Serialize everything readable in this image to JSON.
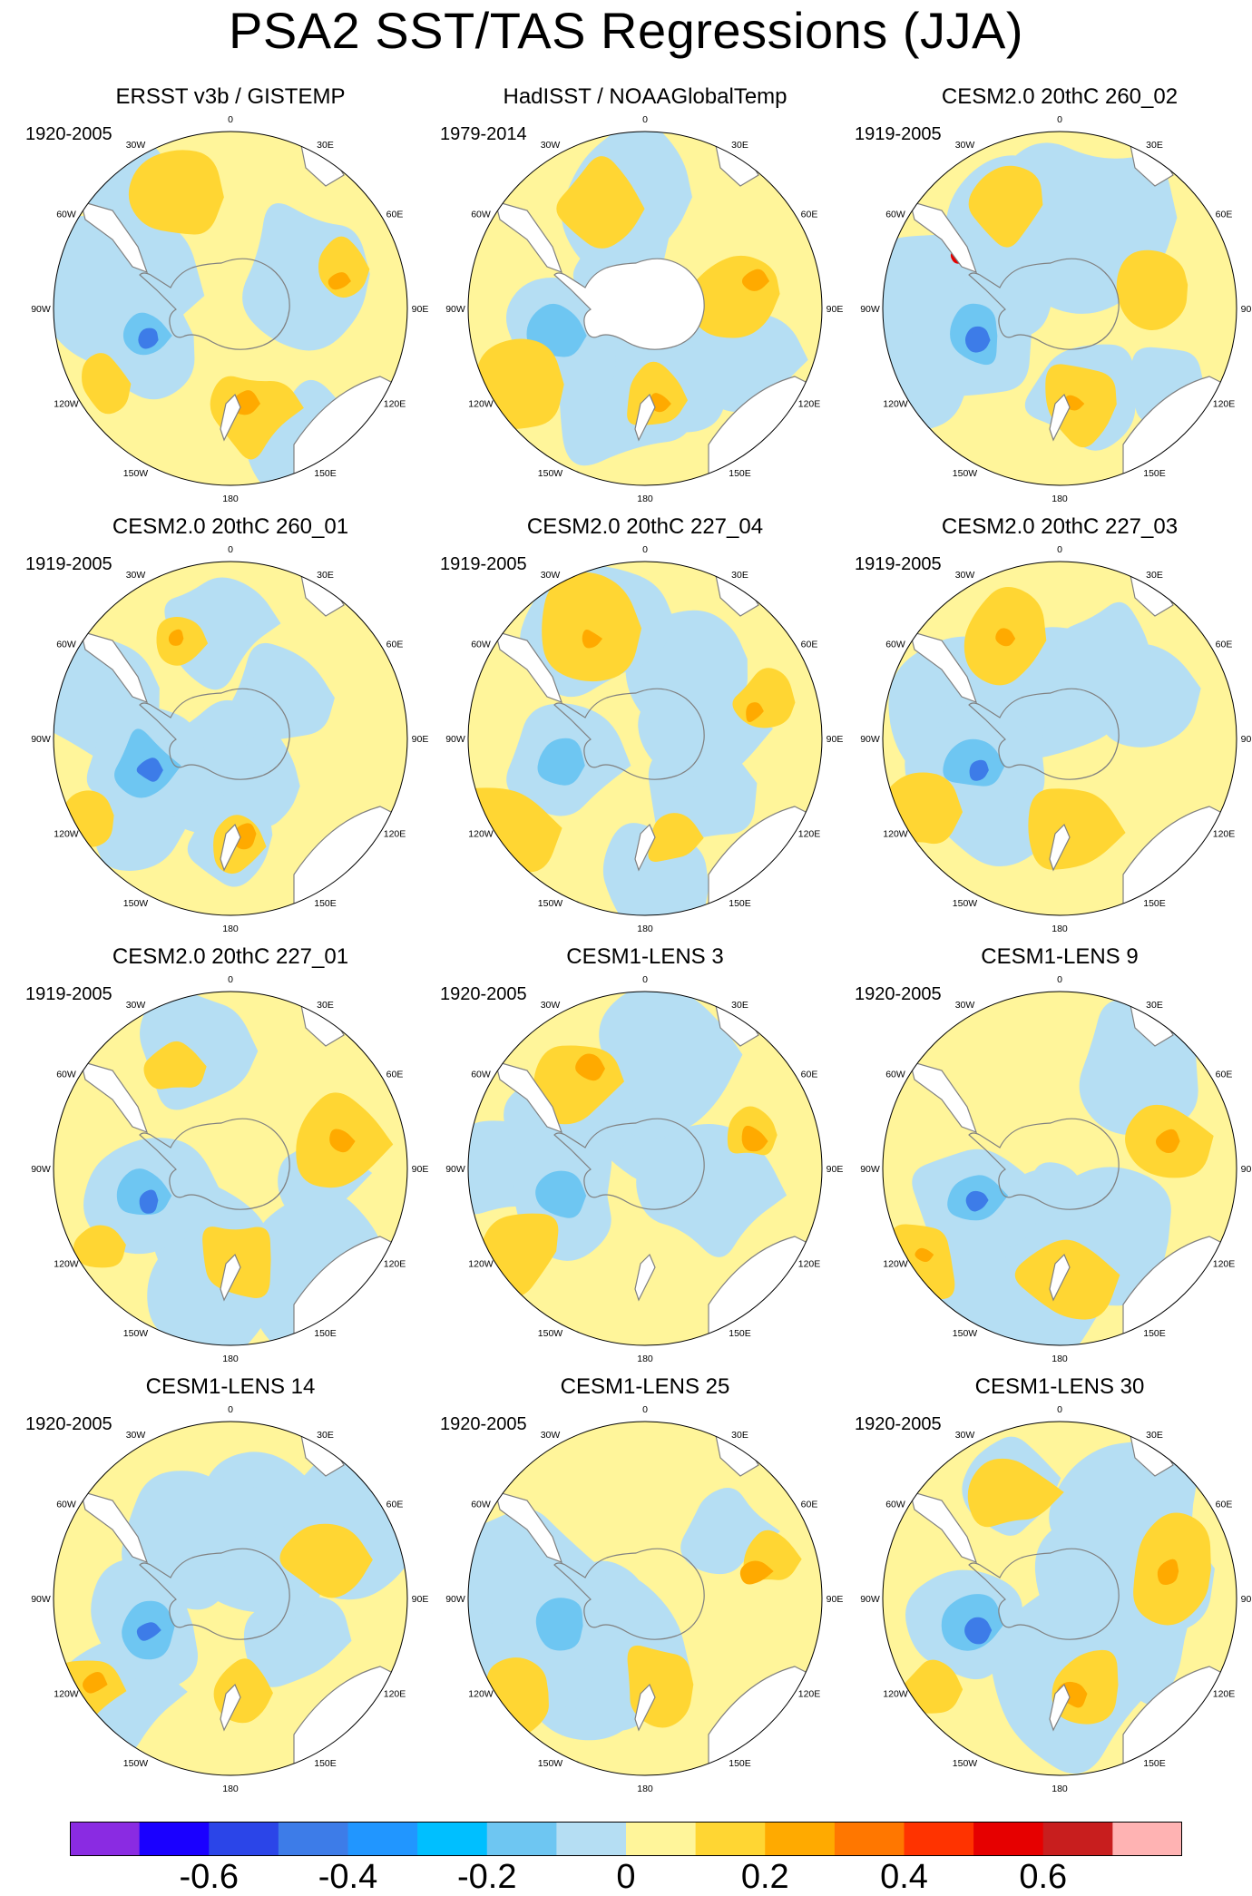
{
  "figure": {
    "title": "PSA2 SST/TAS Regressions (JJA)"
  },
  "longitude_labels": [
    "0",
    "30E",
    "60E",
    "90E",
    "120E",
    "150E",
    "180",
    "150W",
    "120W",
    "90W",
    "60W",
    "30W"
  ],
  "panels": [
    {
      "title": "ERSST v3b / GISTEMP",
      "period": "1920-2005"
    },
    {
      "title": "HadISST / NOAAGlobalTemp",
      "period": "1979-2014"
    },
    {
      "title": "CESM2.0 20thC 260_02",
      "period": "1919-2005"
    },
    {
      "title": "CESM2.0 20thC 260_01",
      "period": "1919-2005"
    },
    {
      "title": "CESM2.0 20thC 227_04",
      "period": "1919-2005"
    },
    {
      "title": "CESM2.0 20thC 227_03",
      "period": "1919-2005"
    },
    {
      "title": "CESM2.0 20thC 227_01",
      "period": "1919-2005"
    },
    {
      "title": "CESM1-LENS 3",
      "period": "1920-2005"
    },
    {
      "title": "CESM1-LENS 9",
      "period": "1920-2005"
    },
    {
      "title": "CESM1-LENS 14",
      "period": "1920-2005"
    },
    {
      "title": "CESM1-LENS 25",
      "period": "1920-2005"
    },
    {
      "title": "CESM1-LENS 30",
      "period": "1920-2005"
    }
  ],
  "colorbar": {
    "colors": [
      "#8a2be2",
      "#1a00ff",
      "#2b45e8",
      "#3d7ce8",
      "#2196ff",
      "#00bfff",
      "#6ec6f2",
      "#b5def3",
      "#fff59a",
      "#ffd633",
      "#ffaa00",
      "#ff7700",
      "#ff3300",
      "#e60000",
      "#c81e1e",
      "#ffb3b3"
    ],
    "labels": [
      "-0.6",
      "-0.4",
      "-0.2",
      "0",
      "0.2",
      "0.4",
      "0.6"
    ],
    "label_levels": [
      -0.6,
      -0.4,
      -0.2,
      0,
      0.2,
      0.4,
      0.6
    ],
    "min": -0.8,
    "max": 0.8
  },
  "palette": {
    "neg_light": "#b5def3",
    "neg_mid": "#6ec6f2",
    "neg_strong": "#3d7ce8",
    "pos_light": "#fff59a",
    "pos_mid": "#ffd633",
    "pos_strong": "#ffaa00",
    "pos_extreme": "#e60000",
    "land": "#ffffff",
    "coast": "#808080"
  }
}
